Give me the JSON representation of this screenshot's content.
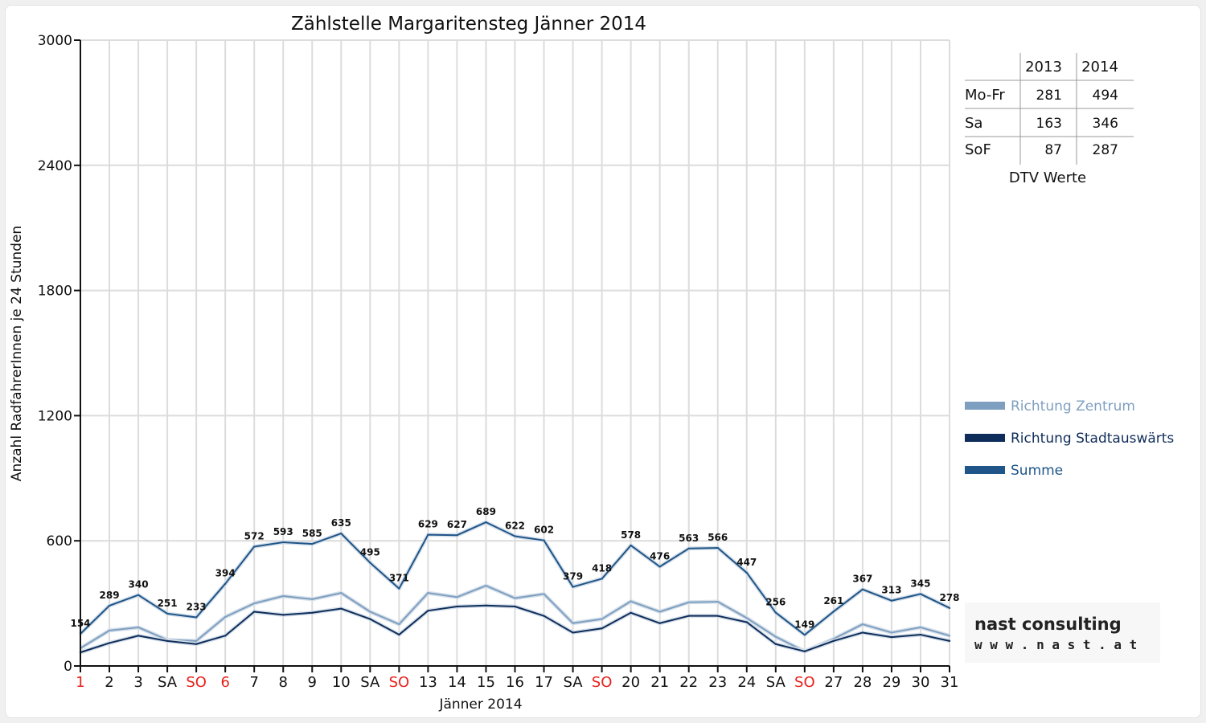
{
  "chart_data": {
    "type": "line",
    "title": "Zählstelle Margaritensteg Jänner 2014",
    "xlabel": "Jänner 2014",
    "ylabel": "Anzahl RadfahrerInnen je 24 Stunden",
    "ylim": [
      0,
      3000
    ],
    "yticks": [
      "0",
      "600",
      "1200",
      "1800",
      "2400",
      "3000"
    ],
    "categories": [
      "1",
      "2",
      "3",
      "SA",
      "SO",
      "6",
      "7",
      "8",
      "9",
      "10",
      "SA",
      "SO",
      "13",
      "14",
      "15",
      "16",
      "17",
      "SA",
      "SO",
      "20",
      "21",
      "22",
      "23",
      "24",
      "SA",
      "SO",
      "27",
      "28",
      "29",
      "30",
      "31"
    ],
    "red_categories": [
      0,
      4,
      5,
      11,
      18,
      25
    ],
    "grid": true,
    "legend_position": "right",
    "series": [
      {
        "name": "Richtung Zentrum",
        "color": "#7f9fc0",
        "values": [
          85,
          170,
          185,
          125,
          120,
          235,
          300,
          335,
          320,
          350,
          260,
          200,
          350,
          330,
          385,
          325,
          345,
          205,
          225,
          310,
          260,
          305,
          308,
          230,
          140,
          70,
          130,
          200,
          160,
          185,
          145
        ]
      },
      {
        "name": "Richtung Stadtauswärts",
        "color": "#0f2d5a",
        "values": [
          65,
          110,
          145,
          120,
          105,
          145,
          260,
          245,
          255,
          275,
          225,
          150,
          265,
          285,
          290,
          285,
          240,
          160,
          180,
          255,
          205,
          240,
          240,
          210,
          105,
          70,
          120,
          160,
          138,
          150,
          120
        ]
      },
      {
        "name": "Summe",
        "color": "#1f5588",
        "values": [
          154,
          289,
          340,
          251,
          233,
          394,
          572,
          593,
          585,
          635,
          495,
          371,
          629,
          627,
          689,
          622,
          602,
          379,
          418,
          578,
          476,
          563,
          566,
          447,
          256,
          149,
          261,
          367,
          313,
          345,
          278
        ],
        "labels": [
          "154",
          "289",
          "340",
          "251",
          "233",
          "394",
          "572",
          "593",
          "585",
          "635",
          "495",
          "371",
          "629",
          "627",
          "689",
          "622",
          "602",
          "379",
          "418",
          "578",
          "476",
          "563",
          "566",
          "447",
          "256",
          "149",
          "261",
          "367",
          "313",
          "345",
          "278"
        ]
      }
    ]
  },
  "dtv_table": {
    "caption": "DTV Werte",
    "columns": [
      "2013",
      "2014"
    ],
    "rows": [
      {
        "label": "Mo-Fr",
        "v2013": "281",
        "v2014": "494"
      },
      {
        "label": "Sa",
        "v2013": "163",
        "v2014": "346"
      },
      {
        "label": "SoF",
        "v2013": "87",
        "v2014": "287"
      }
    ]
  },
  "logo": {
    "name": "nast consulting",
    "url": "w w w . n a s t . a t"
  }
}
